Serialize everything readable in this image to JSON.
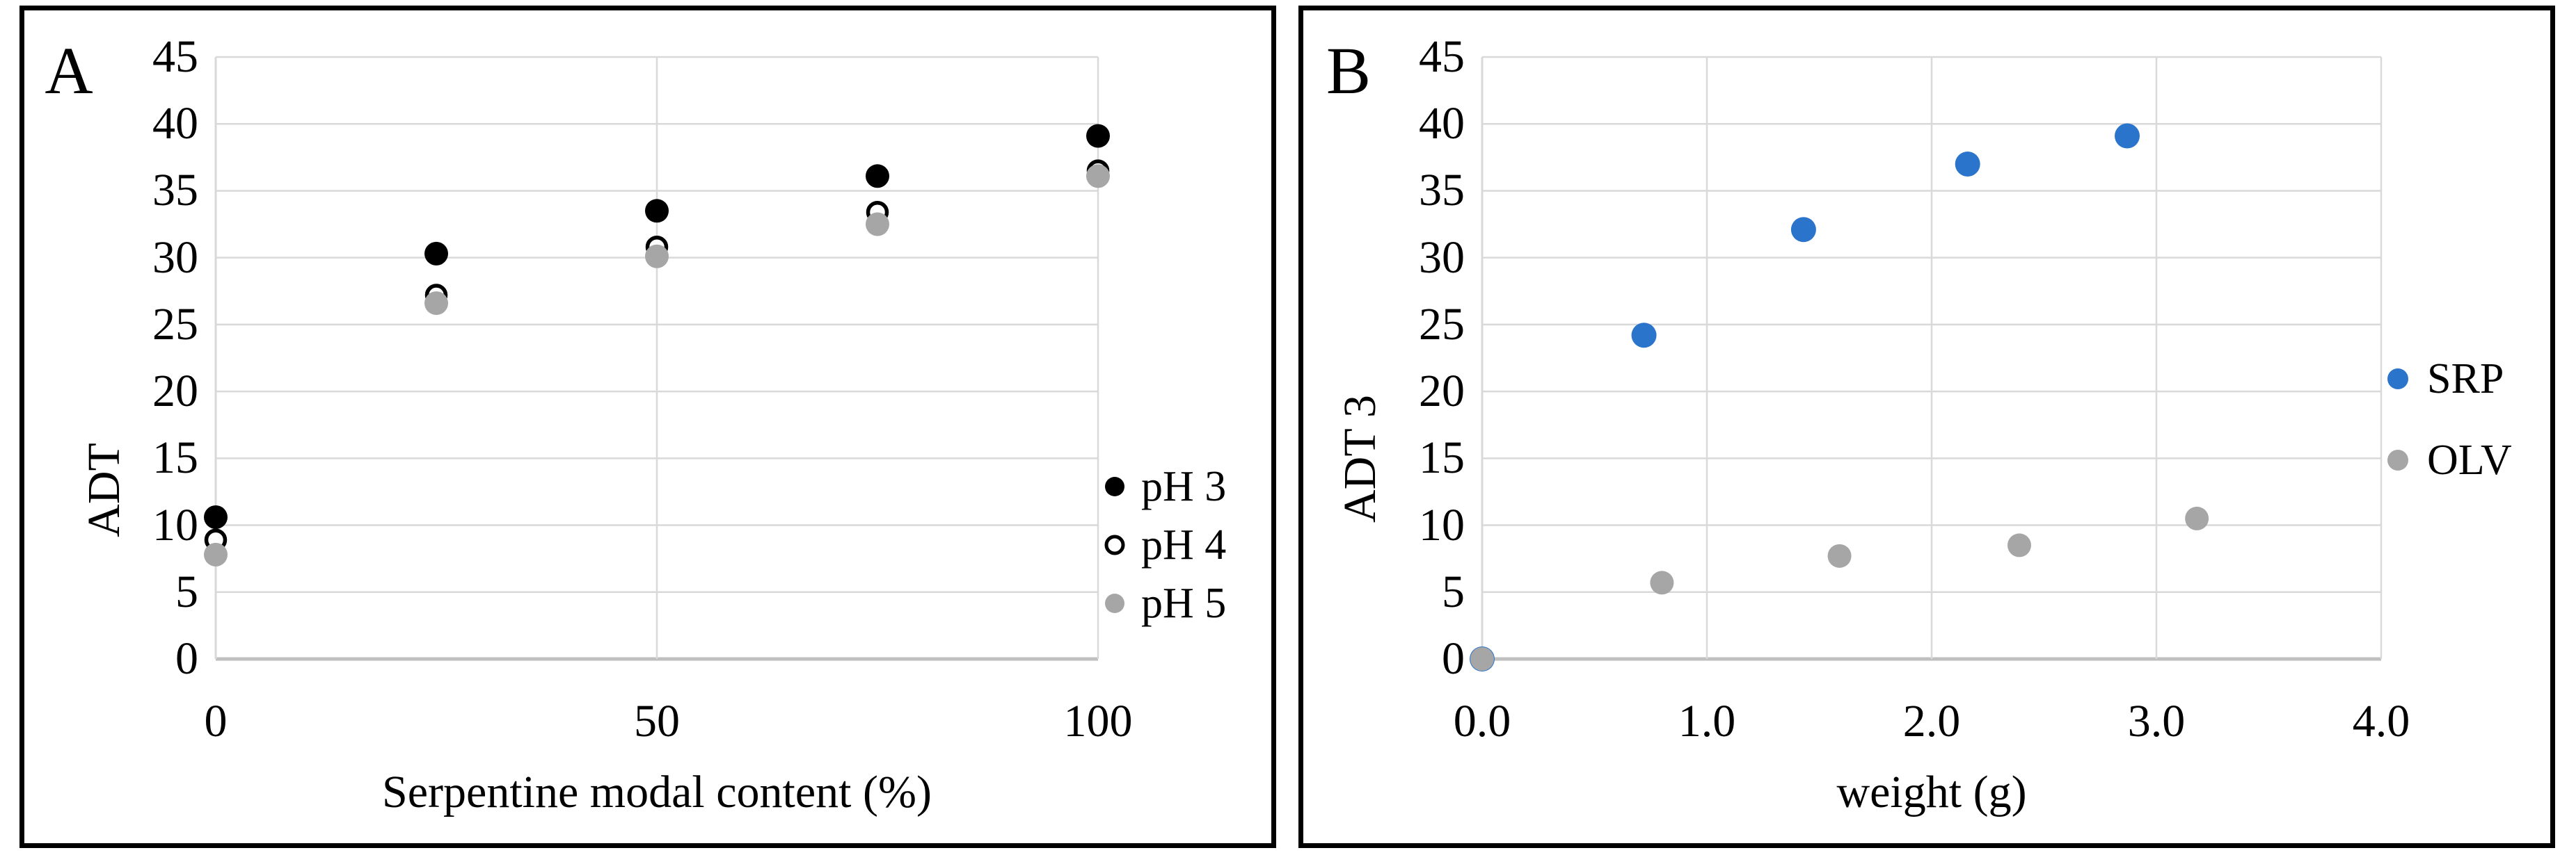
{
  "style": {
    "background": "#ffffff",
    "frame_color": "#000000",
    "gridline_color": "#d9d9d9",
    "axis_line_color": "#bfbfbf",
    "open_marker_stroke": "#000000",
    "srp_blue": "#2b74cc",
    "neutral_gray": "#a6a6a6"
  },
  "chart_data": [
    {
      "type": "scatter",
      "panel_label": "A",
      "title": "",
      "xlabel": "Serpentine modal content (%)",
      "ylabel": "ADT",
      "xlim": [
        0,
        100
      ],
      "ylim": [
        0,
        45
      ],
      "grid": "major-on",
      "legend_position": "right",
      "x_ticks": {
        "values": [
          0,
          50,
          100
        ],
        "labels": [
          "0",
          "50",
          "100"
        ]
      },
      "y_ticks": {
        "values": [
          0,
          5,
          10,
          15,
          20,
          25,
          30,
          35,
          40,
          45
        ],
        "labels": [
          "0",
          "5",
          "10",
          "15",
          "20",
          "25",
          "30",
          "35",
          "40",
          "45"
        ]
      },
      "series": [
        {
          "name": "pH 3",
          "marker": "circle-filled",
          "color": "#000000",
          "points": [
            [
              0,
              10.6
            ],
            [
              25,
              30.3
            ],
            [
              50,
              33.5
            ],
            [
              75,
              36.1
            ],
            [
              100,
              39.1
            ]
          ]
        },
        {
          "name": "pH 4",
          "marker": "circle-open",
          "color": "#000000",
          "points": [
            [
              0,
              8.9
            ],
            [
              25,
              27.2
            ],
            [
              50,
              30.8
            ],
            [
              75,
              33.4
            ],
            [
              100,
              36.5
            ]
          ]
        },
        {
          "name": "pH 5",
          "marker": "circle-filled",
          "color": "#a6a6a6",
          "points": [
            [
              0,
              7.8
            ],
            [
              25,
              26.6
            ],
            [
              50,
              30.1
            ],
            [
              75,
              32.5
            ],
            [
              100,
              36.1
            ]
          ]
        }
      ]
    },
    {
      "type": "scatter",
      "panel_label": "B",
      "title": "",
      "xlabel": "weight (g)",
      "ylabel": "ADT 3",
      "xlim": [
        0,
        4
      ],
      "ylim": [
        0,
        45
      ],
      "grid": "major-on",
      "legend_position": "right",
      "x_ticks": {
        "values": [
          0,
          1,
          2,
          3,
          4
        ],
        "labels": [
          "0.0",
          "1.0",
          "2.0",
          "3.0",
          "4.0"
        ]
      },
      "y_ticks": {
        "values": [
          0,
          5,
          10,
          15,
          20,
          25,
          30,
          35,
          40,
          45
        ],
        "labels": [
          "0",
          "5",
          "10",
          "15",
          "20",
          "25",
          "30",
          "35",
          "40",
          "45"
        ]
      },
      "series": [
        {
          "name": "SRP",
          "marker": "circle-filled",
          "color": "#2b74cc",
          "points": [
            [
              0,
              0
            ],
            [
              0.72,
              24.2
            ],
            [
              1.43,
              32.1
            ],
            [
              2.16,
              37.0
            ],
            [
              2.87,
              39.1
            ]
          ]
        },
        {
          "name": "OLV",
          "marker": "circle-filled",
          "color": "#a6a6a6",
          "points": [
            [
              0,
              0
            ],
            [
              0.8,
              5.7
            ],
            [
              1.59,
              7.7
            ],
            [
              2.39,
              8.5
            ],
            [
              3.18,
              10.5
            ]
          ]
        }
      ]
    }
  ]
}
